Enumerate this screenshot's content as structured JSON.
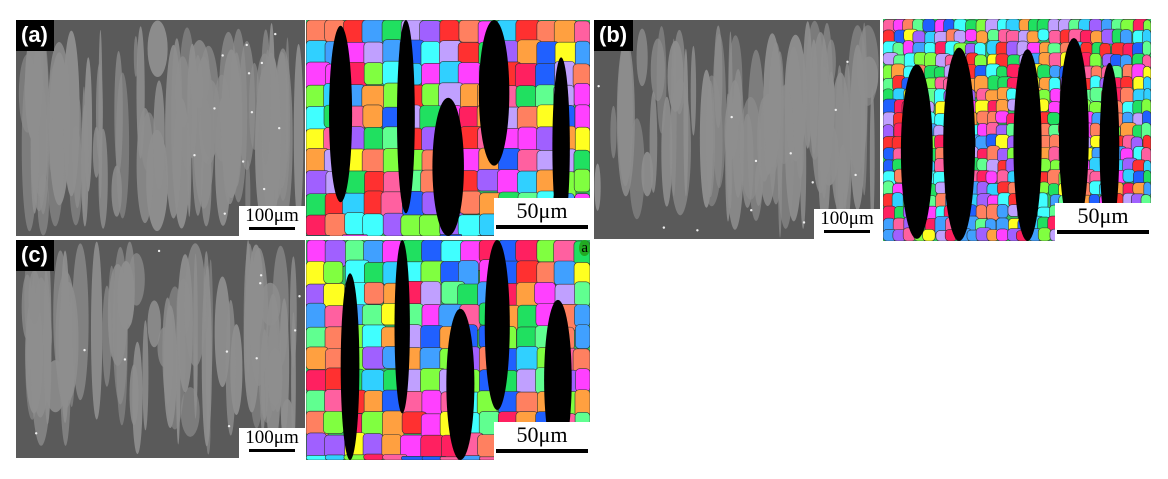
{
  "figure": {
    "panels": [
      {
        "label": "(a)",
        "sem_scale": "100μm",
        "ebsd_scale": "50μm"
      },
      {
        "label": "(b)",
        "sem_scale": "100μm",
        "ebsd_scale": "50μm"
      },
      {
        "label": "(c)",
        "sem_scale": "100μm",
        "ebsd_scale": "50μm",
        "ebsd_corner_mark": "a"
      }
    ]
  },
  "colors": {
    "sem_matrix": "#5a5a5a",
    "sem_phase": "#8e8e8e",
    "ebsd_unindexed": "#000000"
  }
}
